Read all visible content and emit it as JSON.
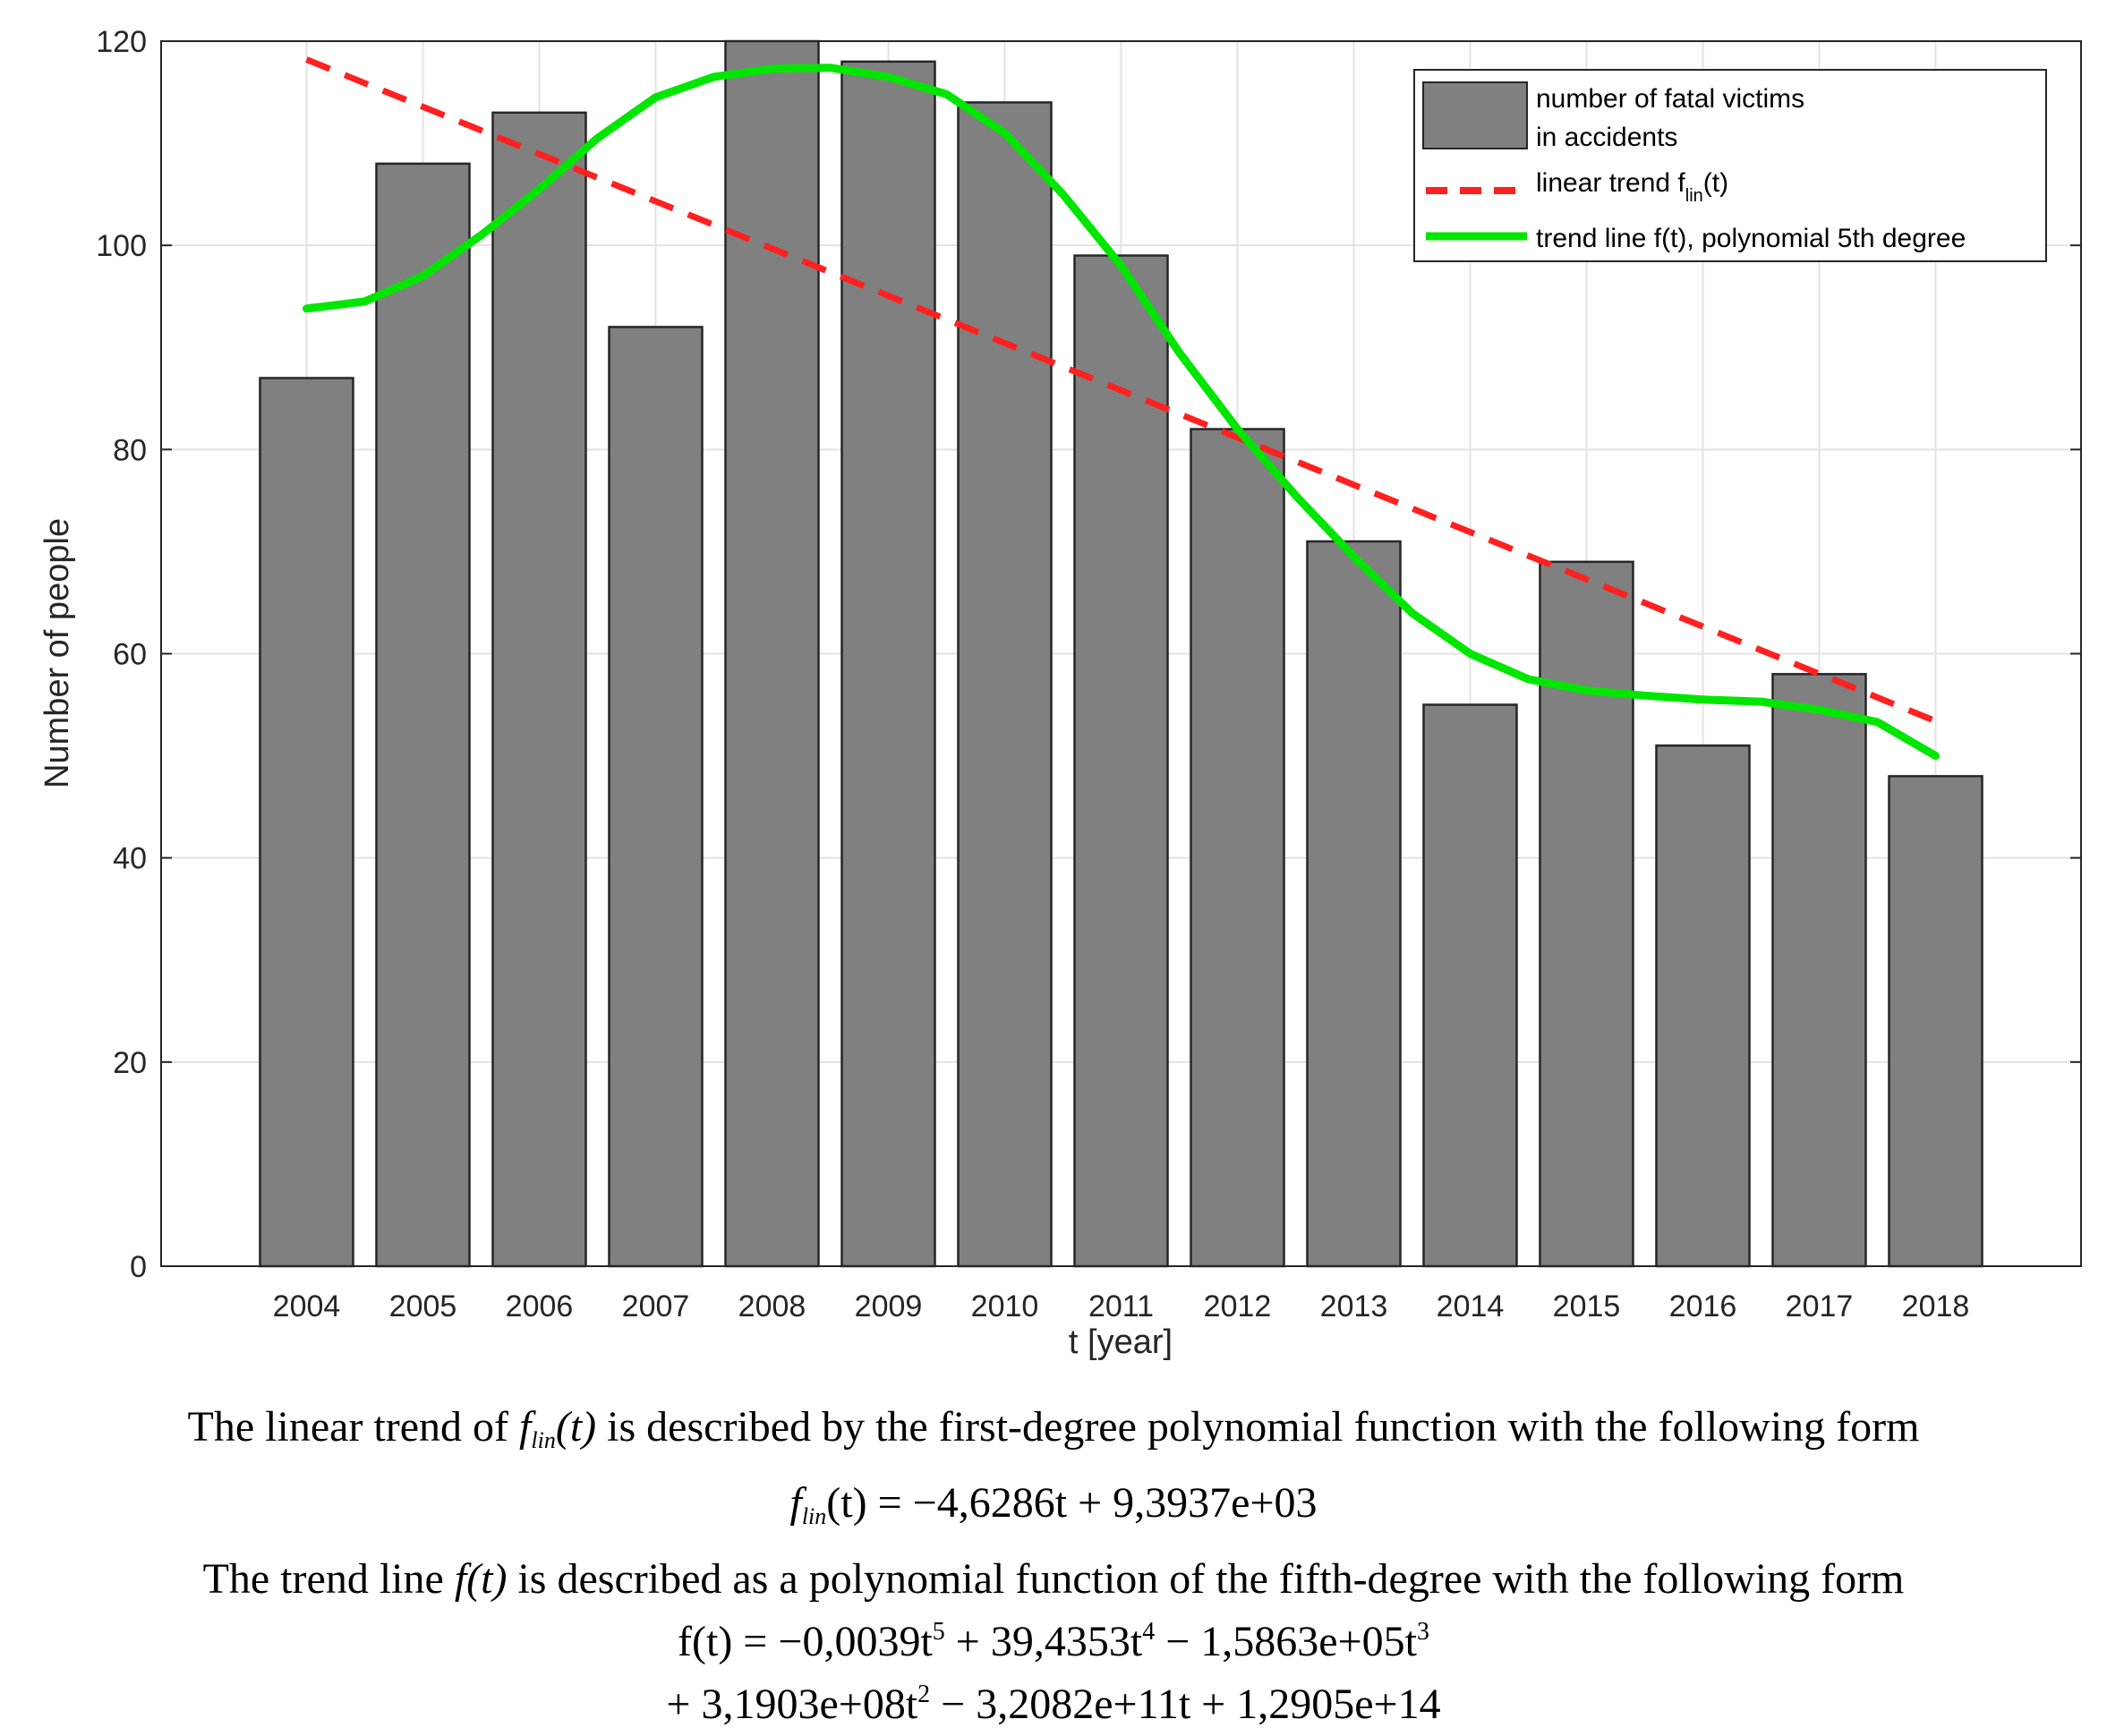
{
  "chart_data": {
    "type": "bar",
    "xlabel": "t [year]",
    "ylabel": "Number of people",
    "ylim": [
      0,
      120
    ],
    "yticks": [
      0,
      20,
      40,
      60,
      80,
      100,
      120
    ],
    "grid": true,
    "legend_position": "top-right",
    "categories": [
      "2004",
      "2005",
      "2006",
      "2007",
      "2008",
      "2009",
      "2010",
      "2011",
      "2012",
      "2013",
      "2014",
      "2015",
      "2016",
      "2017",
      "2018"
    ],
    "series": [
      {
        "name": "number of fatal victims in accidents",
        "type": "bar",
        "color": "#808080",
        "values": [
          87,
          108,
          113,
          92,
          120,
          118,
          114,
          99,
          82,
          71,
          55,
          69,
          51,
          58,
          48
        ]
      },
      {
        "name": "linear trend f_lin(t)",
        "type": "line",
        "style": "dashed",
        "color": "#ff2020",
        "x": [
          2004,
          2018
        ],
        "values": [
          118.2,
          53.4
        ]
      },
      {
        "name": "trend line f(t), polynomial 5th degree",
        "type": "line",
        "style": "solid",
        "color": "#00e600",
        "x": [
          2004,
          2004.5,
          2005,
          2005.5,
          2006,
          2006.5,
          2007,
          2007.5,
          2008,
          2008.5,
          2009,
          2009.5,
          2010,
          2010.5,
          2011,
          2011.5,
          2012,
          2012.5,
          2013,
          2013.5,
          2014,
          2014.5,
          2015,
          2015.5,
          2016,
          2016.5,
          2017,
          2017.5,
          2018
        ],
        "values": [
          93.8,
          94.5,
          97,
          101,
          105.5,
          110.5,
          114.5,
          116.5,
          117.3,
          117.4,
          116.5,
          114.8,
          111,
          105,
          98,
          89.5,
          82,
          75.5,
          69.5,
          64,
          60,
          57.5,
          56.4,
          55.9,
          55.5,
          55.3,
          54.5,
          53.3,
          50
        ]
      }
    ],
    "legend": {
      "bar_line1": "number of fatal victims",
      "bar_line2": "in accidents",
      "linear_main": "linear trend f",
      "linear_sub": "lin",
      "linear_tail": "(t)",
      "poly": "trend line f(t), polynomial 5th degree"
    }
  },
  "caption": {
    "line1_a": "The linear trend of ",
    "line1_f": "f",
    "line1_sub": "lin",
    "line1_t": "(t)",
    "line1_b": " is described by the first-degree polynomial function with the following form",
    "line2_f": "f",
    "line2_sub": "lin",
    "line2_rest": "(t) = −4,6286t  +  9,3937e+03",
    "line3_a": "The trend line ",
    "line3_f": "f(t)",
    "line3_b": " is described as a polynomial function of the fifth-degree with the following form",
    "line4_a": "f(t) = −0,0039t",
    "line4_e1": "5",
    "line4_b": " + 39,4353t",
    "line4_e2": "4",
    "line4_c": " − 1,5863e+05t",
    "line4_e3": "3",
    "line5_a": "+ 3,1903e+08t",
    "line5_e1": "2",
    "line5_b": " − 3,2082e+11t + 1,2905e+14"
  }
}
